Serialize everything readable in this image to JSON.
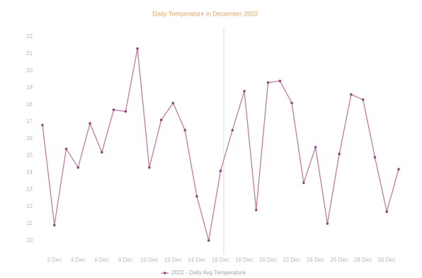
{
  "chart_data": {
    "type": "line",
    "title": "Daily Temperature in December 2022",
    "categories": [
      null,
      "2 Dec",
      null,
      "4 Dec",
      null,
      "6 Dec",
      null,
      "8 Dec",
      null,
      "10 Dec",
      null,
      "12 Dec",
      null,
      "14 Dec",
      null,
      "16 Dec",
      null,
      "18 Dec",
      null,
      "20 Dec",
      null,
      "22 Dec",
      null,
      "24 Dec",
      null,
      "26 Dec",
      null,
      "28 Dec",
      null,
      "30 Dec",
      null
    ],
    "series": [
      {
        "name": "2022 - Daily Avg Temperature",
        "color": "#c27ba0",
        "values": [
          16.8,
          10.9,
          15.4,
          14.3,
          16.9,
          15.2,
          17.7,
          17.6,
          21.3,
          14.3,
          17.1,
          18.1,
          16.5,
          12.6,
          10.0,
          14.1,
          16.5,
          18.8,
          11.8,
          19.3,
          19.4,
          18.1,
          13.4,
          15.5,
          11.0,
          15.1,
          18.6,
          18.3,
          14.9,
          11.7,
          14.2
        ]
      }
    ],
    "ylim": [
      10,
      22
    ],
    "yticks": [
      10,
      11,
      12,
      13,
      14,
      15,
      16,
      17,
      18,
      19,
      20,
      21,
      22
    ],
    "grid": false,
    "legend": "bottom"
  }
}
